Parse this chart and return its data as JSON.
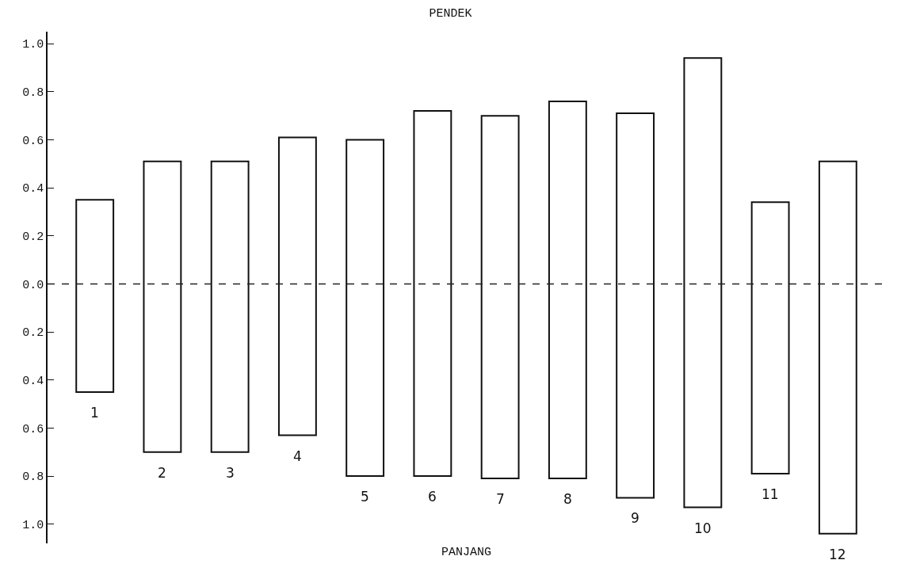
{
  "chart_data": {
    "type": "bar",
    "title": "PENDEK",
    "xlabel": "PANJANG",
    "categories": [
      "1",
      "2",
      "3",
      "4",
      "5",
      "6",
      "7",
      "8",
      "9",
      "10",
      "11",
      "12"
    ],
    "base": [
      -0.45,
      -0.7,
      -0.7,
      -0.63,
      -0.8,
      -0.8,
      -0.81,
      -0.81,
      -0.89,
      -0.93,
      -0.79,
      -1.04
    ],
    "values": [
      0.8,
      1.21,
      1.21,
      1.24,
      1.4,
      1.52,
      1.51,
      1.57,
      1.6,
      1.87,
      1.13,
      1.55
    ],
    "color": "#ffffff",
    "ylim": [
      -1.08,
      1.05
    ],
    "yticks": [
      {
        "value": -1.0,
        "label": "1.0"
      },
      {
        "value": -0.8,
        "label": "0.8"
      },
      {
        "value": -0.6,
        "label": "0.6"
      },
      {
        "value": -0.4,
        "label": "0.4"
      },
      {
        "value": -0.2,
        "label": "0.2"
      },
      {
        "value": 0,
        "label": "0.0"
      },
      {
        "value": 0.2,
        "label": "0.2"
      },
      {
        "value": 0.4,
        "label": "0.4"
      },
      {
        "value": 0.6,
        "label": "0.6"
      },
      {
        "value": 0.8,
        "label": "0.8"
      },
      {
        "value": 1.0,
        "label": "1.0"
      }
    ],
    "ref_lines": [
      {
        "axis": "y",
        "value": 0,
        "color": "#222222",
        "line_style": "dashed"
      }
    ],
    "tick_labels": "y"
  }
}
